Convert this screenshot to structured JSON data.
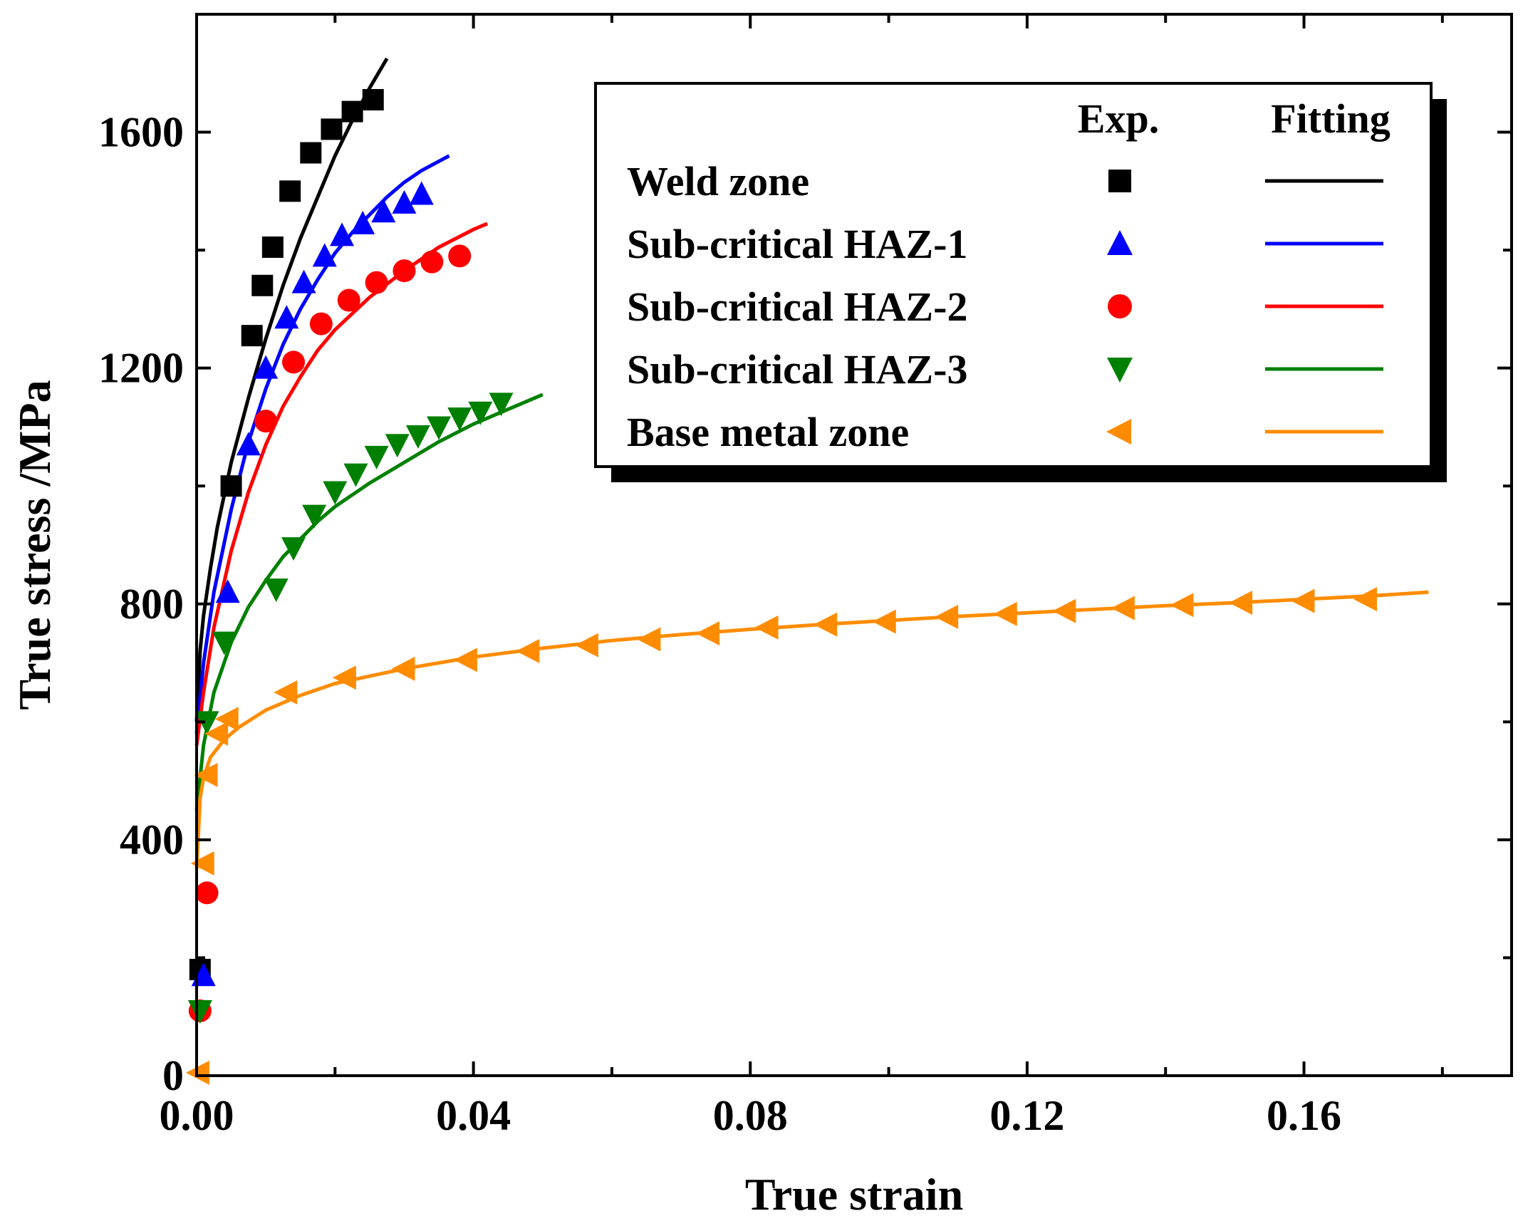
{
  "chart_data": {
    "type": "scatter",
    "title": "",
    "xlabel": "True strain",
    "ylabel": "True stress /MPa",
    "xlim": [
      0,
      0.19
    ],
    "ylim": [
      0,
      1800
    ],
    "x_ticks": [
      0.0,
      0.04,
      0.08,
      0.12,
      0.16
    ],
    "x_tick_labels": [
      "0.00",
      "0.04",
      "0.08",
      "0.12",
      "0.16"
    ],
    "y_ticks": [
      0,
      400,
      800,
      1200,
      1600
    ],
    "y_tick_labels": [
      "0",
      "400",
      "800",
      "1200",
      "1600"
    ],
    "grid": false,
    "legend": {
      "position": "top-right",
      "header_exp": "Exp.",
      "header_fit": "Fitting"
    },
    "series": [
      {
        "name": "Weld zone",
        "color": "#000000",
        "marker": "square",
        "exp": [
          [
            0.0005,
            180
          ],
          [
            0.005,
            1000
          ],
          [
            0.008,
            1255
          ],
          [
            0.0095,
            1340
          ],
          [
            0.011,
            1405
          ],
          [
            0.0135,
            1500
          ],
          [
            0.0165,
            1565
          ],
          [
            0.0195,
            1605
          ],
          [
            0.0225,
            1635
          ],
          [
            0.0255,
            1655
          ]
        ],
        "fit": [
          [
            0.0,
            600
          ],
          [
            0.0005,
            720
          ],
          [
            0.001,
            780
          ],
          [
            0.002,
            860
          ],
          [
            0.003,
            930
          ],
          [
            0.005,
            1040
          ],
          [
            0.0075,
            1150
          ],
          [
            0.01,
            1250
          ],
          [
            0.0125,
            1340
          ],
          [
            0.015,
            1420
          ],
          [
            0.0175,
            1490
          ],
          [
            0.02,
            1560
          ],
          [
            0.0225,
            1620
          ],
          [
            0.025,
            1675
          ],
          [
            0.0275,
            1725
          ]
        ]
      },
      {
        "name": "Sub-critical HAZ-1",
        "color": "#0000ff",
        "marker": "triangle-up",
        "exp": [
          [
            0.001,
            170
          ],
          [
            0.0045,
            820
          ],
          [
            0.0075,
            1070
          ],
          [
            0.01,
            1200
          ],
          [
            0.013,
            1285
          ],
          [
            0.0155,
            1345
          ],
          [
            0.0185,
            1390
          ],
          [
            0.021,
            1425
          ],
          [
            0.024,
            1445
          ],
          [
            0.027,
            1465
          ],
          [
            0.03,
            1480
          ],
          [
            0.0325,
            1495
          ]
        ],
        "fit": [
          [
            0.0,
            580
          ],
          [
            0.001,
            700
          ],
          [
            0.0025,
            820
          ],
          [
            0.005,
            960
          ],
          [
            0.0075,
            1075
          ],
          [
            0.01,
            1165
          ],
          [
            0.0125,
            1240
          ],
          [
            0.015,
            1300
          ],
          [
            0.0175,
            1350
          ],
          [
            0.02,
            1395
          ],
          [
            0.0225,
            1430
          ],
          [
            0.025,
            1460
          ],
          [
            0.0275,
            1490
          ],
          [
            0.03,
            1515
          ],
          [
            0.0325,
            1535
          ],
          [
            0.0365,
            1560
          ]
        ]
      },
      {
        "name": "Sub-critical HAZ-2",
        "color": "#ff0000",
        "marker": "circle",
        "exp": [
          [
            0.0005,
            110
          ],
          [
            0.0015,
            310
          ],
          [
            0.01,
            1110
          ],
          [
            0.014,
            1210
          ],
          [
            0.018,
            1275
          ],
          [
            0.022,
            1315
          ],
          [
            0.026,
            1345
          ],
          [
            0.03,
            1365
          ],
          [
            0.034,
            1380
          ],
          [
            0.038,
            1390
          ]
        ],
        "fit": [
          [
            0.0,
            560
          ],
          [
            0.001,
            650
          ],
          [
            0.0025,
            760
          ],
          [
            0.005,
            890
          ],
          [
            0.0075,
            990
          ],
          [
            0.01,
            1070
          ],
          [
            0.0125,
            1135
          ],
          [
            0.015,
            1185
          ],
          [
            0.0175,
            1230
          ],
          [
            0.02,
            1265
          ],
          [
            0.025,
            1320
          ],
          [
            0.03,
            1365
          ],
          [
            0.035,
            1405
          ],
          [
            0.04,
            1435
          ],
          [
            0.042,
            1445
          ]
        ]
      },
      {
        "name": "Sub-critical HAZ-3",
        "color": "#008000",
        "marker": "triangle-down",
        "exp": [
          [
            0.0005,
            110
          ],
          [
            0.0015,
            600
          ],
          [
            0.004,
            735
          ],
          [
            0.0115,
            825
          ],
          [
            0.014,
            895
          ],
          [
            0.017,
            950
          ],
          [
            0.02,
            990
          ],
          [
            0.023,
            1020
          ],
          [
            0.026,
            1050
          ],
          [
            0.029,
            1070
          ],
          [
            0.032,
            1085
          ],
          [
            0.035,
            1100
          ],
          [
            0.038,
            1115
          ],
          [
            0.041,
            1125
          ],
          [
            0.044,
            1140
          ]
        ],
        "fit": [
          [
            0.0,
            450
          ],
          [
            0.001,
            560
          ],
          [
            0.0025,
            650
          ],
          [
            0.005,
            735
          ],
          [
            0.0075,
            795
          ],
          [
            0.01,
            840
          ],
          [
            0.0125,
            880
          ],
          [
            0.015,
            910
          ],
          [
            0.0175,
            940
          ],
          [
            0.02,
            965
          ],
          [
            0.025,
            1005
          ],
          [
            0.03,
            1040
          ],
          [
            0.035,
            1075
          ],
          [
            0.04,
            1105
          ],
          [
            0.045,
            1130
          ],
          [
            0.05,
            1155
          ]
        ]
      },
      {
        "name": "Base metal zone",
        "color": "#ff8c00",
        "marker": "triangle-left",
        "exp": [
          [
            0.0003,
            5
          ],
          [
            0.001,
            360
          ],
          [
            0.0015,
            510
          ],
          [
            0.003,
            580
          ],
          [
            0.0045,
            605
          ],
          [
            0.013,
            650
          ],
          [
            0.0215,
            675
          ],
          [
            0.03,
            690
          ],
          [
            0.039,
            705
          ],
          [
            0.048,
            720
          ],
          [
            0.0565,
            730
          ],
          [
            0.0655,
            740
          ],
          [
            0.074,
            750
          ],
          [
            0.0825,
            760
          ],
          [
            0.091,
            765
          ],
          [
            0.0995,
            770
          ],
          [
            0.1085,
            778
          ],
          [
            0.117,
            783
          ],
          [
            0.1255,
            788
          ],
          [
            0.134,
            793
          ],
          [
            0.1425,
            798
          ],
          [
            0.151,
            802
          ],
          [
            0.16,
            805
          ],
          [
            0.169,
            808
          ]
        ],
        "fit": [
          [
            0.0,
            350
          ],
          [
            0.0005,
            470
          ],
          [
            0.001,
            505
          ],
          [
            0.002,
            540
          ],
          [
            0.004,
            570
          ],
          [
            0.006,
            590
          ],
          [
            0.008,
            605
          ],
          [
            0.01,
            620
          ],
          [
            0.015,
            645
          ],
          [
            0.02,
            665
          ],
          [
            0.03,
            690
          ],
          [
            0.04,
            710
          ],
          [
            0.05,
            725
          ],
          [
            0.06,
            738
          ],
          [
            0.07,
            748
          ],
          [
            0.08,
            757
          ],
          [
            0.09,
            765
          ],
          [
            0.1,
            772
          ],
          [
            0.11,
            779
          ],
          [
            0.12,
            785
          ],
          [
            0.13,
            791
          ],
          [
            0.14,
            797
          ],
          [
            0.15,
            802
          ],
          [
            0.16,
            808
          ],
          [
            0.17,
            814
          ],
          [
            0.178,
            820
          ]
        ]
      }
    ]
  }
}
